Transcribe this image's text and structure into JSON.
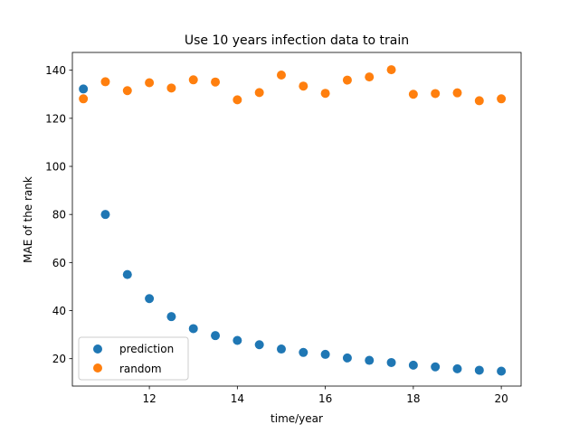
{
  "chart_data": {
    "type": "scatter",
    "title": "Use 10 years infection data to train",
    "xlabel": "time/year",
    "ylabel": "MAE of the rank",
    "xlim": [
      10.25,
      20.45
    ],
    "ylim": [
      8.6,
      147.4
    ],
    "xticks": [
      12,
      14,
      16,
      18,
      20
    ],
    "yticks": [
      20,
      40,
      60,
      80,
      100,
      120,
      140
    ],
    "grid": false,
    "legend_position": "lower left",
    "series": [
      {
        "name": "prediction",
        "color": "#1f77b4",
        "x": [
          10.5,
          11.0,
          11.5,
          12.0,
          12.5,
          13.0,
          13.5,
          14.0,
          14.5,
          15.0,
          15.5,
          16.0,
          16.5,
          17.0,
          17.5,
          18.0,
          18.5,
          19.0,
          19.5,
          20.0
        ],
        "y": [
          132.2,
          80.0,
          55.0,
          45.0,
          37.5,
          32.5,
          29.6,
          27.6,
          25.8,
          24.0,
          22.6,
          21.8,
          20.3,
          19.3,
          18.4,
          17.3,
          16.6,
          15.8,
          15.2,
          14.8
        ]
      },
      {
        "name": "random",
        "color": "#ff7f0e",
        "x": [
          10.5,
          11.0,
          11.5,
          12.0,
          12.5,
          13.0,
          13.5,
          14.0,
          14.5,
          15.0,
          15.5,
          16.0,
          16.5,
          17.0,
          17.5,
          18.0,
          18.5,
          19.0,
          19.5,
          20.0
        ],
        "y": [
          128.1,
          135.2,
          131.5,
          134.8,
          132.6,
          136.0,
          135.1,
          127.7,
          130.7,
          138.0,
          133.4,
          130.4,
          135.9,
          137.2,
          140.2,
          130.0,
          130.3,
          130.6,
          127.3,
          128.1
        ]
      }
    ]
  }
}
